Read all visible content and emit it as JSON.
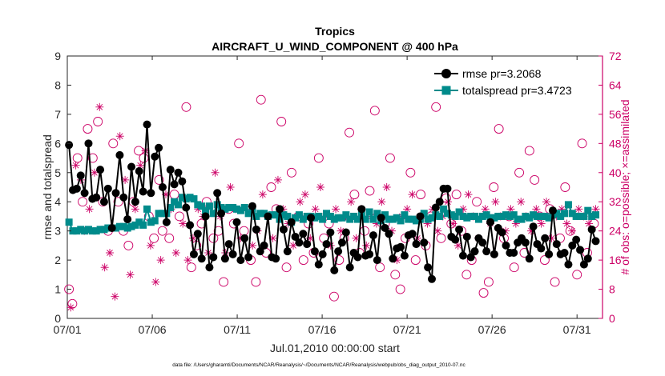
{
  "chart_data": {
    "type": "line",
    "title": "Tropics",
    "subtitle": "AIRCRAFT_U_WIND_COMPONENT @ 400 hPa",
    "xlabel": "Jul.01,2010 00:00:00 start",
    "ylabel_left": "rmse and totalspread",
    "ylabel_right": "# of obs: o=possible; ×=assimilated",
    "footer": "data file: /Users/gharamti/Documents/NCAR/Reanalysis/~/Documents/NCAR/Reanalysis/webpub/obs_diag_output_2010-07.nc",
    "xlim": [
      0,
      31.5
    ],
    "ylim_left": [
      0,
      9
    ],
    "ylim_right": [
      0,
      72
    ],
    "x_ticks": [
      0,
      5,
      10,
      15,
      20,
      25,
      30
    ],
    "x_tick_labels": [
      "07/01",
      "07/06",
      "07/11",
      "07/16",
      "07/21",
      "07/26",
      "07/31"
    ],
    "y_left_ticks": [
      "0",
      "1",
      "2",
      "3",
      "4",
      "5",
      "6",
      "7",
      "8",
      "9"
    ],
    "y_right_ticks": [
      "0",
      "8",
      "16",
      "24",
      "32",
      "40",
      "48",
      "56",
      "64",
      "72"
    ],
    "colors": {
      "rmse": "#000000",
      "totalspread": "#008b8b",
      "obs": "#cc0066",
      "axis": "#262626"
    },
    "series": [
      {
        "name": "rmse",
        "legend": "rmse pr=3.2068",
        "values": [
          5.95,
          4.4,
          4.45,
          4.9,
          4.3,
          6,
          4.1,
          4.15,
          5.1,
          4.0,
          4.45,
          3.1,
          4.3,
          5.6,
          4.15,
          3.4,
          5.2,
          4.0,
          5.05,
          4.35,
          6.65,
          4.3,
          5.55,
          5.85,
          4.5,
          3.3,
          5.1,
          4.6,
          5.0,
          4.7,
          3.8,
          3.2,
          2.2,
          2.9,
          2.05,
          3.5,
          1.75,
          2.1,
          4.3,
          3.6,
          2.05,
          2.55,
          2.2,
          3.3,
          2.0,
          2.75,
          2.1,
          3.85,
          3.05,
          2.3,
          2.5,
          3.5,
          2.1,
          2.05,
          3.75,
          3.05,
          2.3,
          3.3,
          2.8,
          2.6,
          2.9,
          2.55,
          3.45,
          2.3,
          1.85,
          2.2,
          2.55,
          2.95,
          1.65,
          2.3,
          2.6,
          2.95,
          1.75,
          2.25,
          2.1,
          3.75,
          2.15,
          2.2,
          2.85,
          2.0,
          3.45,
          3.1,
          2.9,
          2.05,
          2.4,
          2.45,
          2.15,
          2.85,
          2.9,
          2.55,
          3.5,
          2.6,
          1.75,
          1.35,
          3.8,
          4.0,
          4.45,
          4.45,
          2.8,
          2.7,
          3.05,
          2.15,
          2.8,
          2.1,
          2.3,
          2.75,
          2.6,
          2.3,
          3.3,
          2.2,
          3.1,
          2.95,
          2.5,
          2.25,
          2.25,
          2.6,
          2.75,
          2.6,
          2.05,
          3.15,
          2.55,
          2.4,
          2.75,
          2.2,
          3.7,
          2.55,
          2.2,
          2.25,
          1.85,
          2.5,
          2.7,
          2.35,
          1.85,
          2.05,
          3.05,
          2.65
        ]
      },
      {
        "name": "totalspread",
        "legend": "totalspread pr=3.4723",
        "values": [
          3.3,
          3.0,
          3.0,
          3.05,
          3.0,
          3.05,
          3.0,
          3.0,
          3.05,
          3.05,
          3.1,
          3.1,
          3.1,
          3.15,
          3.15,
          3.1,
          3.15,
          3.2,
          3.3,
          3.2,
          3.75,
          3.3,
          3.35,
          3.6,
          3.6,
          3.6,
          3.8,
          4.0,
          3.9,
          4.15,
          4.1,
          4.15,
          4.1,
          3.9,
          3.85,
          3.7,
          3.85,
          3.6,
          3.9,
          3.8,
          3.75,
          3.8,
          3.8,
          3.75,
          3.7,
          3.8,
          3.6,
          3.75,
          3.5,
          3.6,
          3.6,
          3.5,
          3.55,
          3.55,
          3.4,
          3.55,
          3.5,
          3.3,
          3.45,
          3.55,
          3.4,
          3.5,
          3.5,
          3.45,
          3.5,
          3.4,
          3.6,
          3.5,
          3.4,
          3.45,
          3.45,
          3.55,
          3.4,
          3.5,
          3.4,
          3.55,
          3.4,
          3.65,
          3.4,
          3.6,
          3.35,
          3.55,
          3.4,
          3.4,
          3.45,
          3.35,
          3.55,
          3.4,
          3.4,
          3.35,
          3.4,
          3.6,
          3.4,
          3.45,
          3.55,
          3.5,
          3.75,
          3.6,
          3.55,
          3.5,
          3.65,
          3.5,
          3.45,
          3.5,
          3.5,
          3.4,
          3.5,
          3.55,
          3.45,
          3.45,
          3.5,
          3.5,
          3.55,
          3.5,
          3.55,
          3.4,
          3.4,
          3.5,
          3.45,
          3.55,
          3.5,
          3.5,
          3.5,
          3.45,
          3.55,
          3.6,
          3.5,
          3.6,
          3.9,
          3.6,
          3.5,
          3.5,
          3.5,
          3.7,
          3.5,
          3.55
        ]
      }
    ],
    "obs_possible": [
      [
        0.1,
        8
      ],
      [
        0.3,
        4
      ],
      [
        0.6,
        44
      ],
      [
        0.9,
        32
      ],
      [
        1.2,
        52
      ],
      [
        1.5,
        44
      ],
      [
        1.8,
        54
      ],
      [
        2.1,
        32
      ],
      [
        2.4,
        24
      ],
      [
        2.7,
        48
      ],
      [
        3.0,
        32
      ],
      [
        3.3,
        24
      ],
      [
        3.6,
        20
      ],
      [
        3.9,
        32
      ],
      [
        4.2,
        46
      ],
      [
        4.5,
        44
      ],
      [
        4.8,
        28
      ],
      [
        5.1,
        22
      ],
      [
        5.4,
        38
      ],
      [
        5.6,
        24
      ],
      [
        6.0,
        22
      ],
      [
        6.3,
        34
      ],
      [
        6.6,
        28
      ],
      [
        7.0,
        58
      ],
      [
        7.3,
        14
      ],
      [
        7.6,
        20
      ],
      [
        7.9,
        26
      ],
      [
        8.2,
        32
      ],
      [
        8.6,
        22
      ],
      [
        8.9,
        24
      ],
      [
        9.2,
        10
      ],
      [
        9.5,
        30
      ],
      [
        9.8,
        26
      ],
      [
        10.1,
        48
      ],
      [
        10.4,
        24
      ],
      [
        10.8,
        16
      ],
      [
        11.1,
        10
      ],
      [
        11.4,
        60
      ],
      [
        11.7,
        18
      ],
      [
        12.0,
        36
      ],
      [
        12.3,
        30
      ],
      [
        12.6,
        54
      ],
      [
        12.9,
        14
      ],
      [
        13.2,
        40
      ],
      [
        13.6,
        28
      ],
      [
        13.9,
        16
      ],
      [
        14.2,
        26
      ],
      [
        14.5,
        18
      ],
      [
        14.8,
        44
      ],
      [
        15.1,
        22
      ],
      [
        15.4,
        26
      ],
      [
        15.7,
        6
      ],
      [
        16.0,
        16
      ],
      [
        16.3,
        22
      ],
      [
        16.6,
        51
      ],
      [
        16.9,
        34
      ],
      [
        17.2,
        18
      ],
      [
        17.5,
        24
      ],
      [
        17.8,
        35
      ],
      [
        18.1,
        57
      ],
      [
        18.4,
        14
      ],
      [
        18.7,
        26
      ],
      [
        19.0,
        44
      ],
      [
        19.3,
        12
      ],
      [
        19.6,
        8
      ],
      [
        19.9,
        22
      ],
      [
        20.2,
        40
      ],
      [
        20.5,
        16
      ],
      [
        20.8,
        34
      ],
      [
        21.1,
        20
      ],
      [
        21.4,
        28
      ],
      [
        21.7,
        58
      ],
      [
        22.0,
        22
      ],
      [
        22.3,
        33
      ],
      [
        22.6,
        26
      ],
      [
        22.9,
        34
      ],
      [
        23.2,
        24
      ],
      [
        23.5,
        12
      ],
      [
        23.8,
        16
      ],
      [
        24.1,
        32
      ],
      [
        24.5,
        7
      ],
      [
        24.8,
        10
      ],
      [
        25.1,
        36
      ],
      [
        25.4,
        52
      ],
      [
        25.7,
        22
      ],
      [
        26.0,
        28
      ],
      [
        26.3,
        14
      ],
      [
        26.6,
        40
      ],
      [
        26.9,
        18
      ],
      [
        27.2,
        46
      ],
      [
        27.5,
        38
      ],
      [
        27.8,
        28
      ],
      [
        28.1,
        16
      ],
      [
        28.4,
        30
      ],
      [
        28.7,
        10
      ],
      [
        29.0,
        22
      ],
      [
        29.3,
        36
      ],
      [
        29.6,
        24
      ],
      [
        30.0,
        12
      ],
      [
        30.3,
        48
      ],
      [
        30.6,
        18
      ],
      [
        31.0,
        26
      ]
    ],
    "obs_assimilated": [
      [
        0.2,
        3
      ],
      [
        0.5,
        42
      ],
      [
        0.8,
        38
      ],
      [
        1.0,
        24
      ],
      [
        1.3,
        30
      ],
      [
        1.6,
        40
      ],
      [
        1.9,
        58
      ],
      [
        2.2,
        14
      ],
      [
        2.5,
        18
      ],
      [
        2.8,
        6
      ],
      [
        3.1,
        50
      ],
      [
        3.4,
        38
      ],
      [
        3.7,
        12
      ],
      [
        4.0,
        30
      ],
      [
        4.3,
        42
      ],
      [
        4.6,
        46
      ],
      [
        4.9,
        20
      ],
      [
        5.2,
        10
      ],
      [
        5.5,
        16
      ],
      [
        5.8,
        34
      ],
      [
        6.1,
        30
      ],
      [
        6.4,
        18
      ],
      [
        6.8,
        26
      ],
      [
        7.1,
        16
      ],
      [
        7.4,
        22
      ],
      [
        7.7,
        30
      ],
      [
        8.0,
        28
      ],
      [
        8.3,
        18
      ],
      [
        8.7,
        40
      ],
      [
        9.0,
        28
      ],
      [
        9.3,
        18
      ],
      [
        9.6,
        36
      ],
      [
        9.9,
        30
      ],
      [
        10.2,
        22
      ],
      [
        10.5,
        30
      ],
      [
        10.9,
        20
      ],
      [
        11.2,
        24
      ],
      [
        11.5,
        34
      ],
      [
        11.8,
        28
      ],
      [
        12.1,
        22
      ],
      [
        12.4,
        38
      ],
      [
        12.7,
        30
      ],
      [
        13.0,
        26
      ],
      [
        13.3,
        20
      ],
      [
        13.7,
        32
      ],
      [
        14.0,
        34
      ],
      [
        14.3,
        22
      ],
      [
        14.6,
        30
      ],
      [
        14.9,
        36
      ],
      [
        15.2,
        28
      ],
      [
        15.5,
        20
      ],
      [
        15.8,
        30
      ],
      [
        16.1,
        24
      ],
      [
        16.4,
        28
      ],
      [
        16.7,
        32
      ],
      [
        17.0,
        22
      ],
      [
        17.3,
        30
      ],
      [
        17.6,
        20
      ],
      [
        17.9,
        28
      ],
      [
        18.2,
        26
      ],
      [
        18.5,
        32
      ],
      [
        18.8,
        36
      ],
      [
        19.1,
        24
      ],
      [
        19.4,
        16
      ],
      [
        19.7,
        28
      ],
      [
        20.0,
        30
      ],
      [
        20.3,
        34
      ],
      [
        20.6,
        22
      ],
      [
        20.9,
        28
      ],
      [
        21.2,
        26
      ],
      [
        21.5,
        30
      ],
      [
        21.8,
        24
      ],
      [
        22.1,
        28
      ],
      [
        22.4,
        32
      ],
      [
        22.7,
        26
      ],
      [
        23.0,
        20
      ],
      [
        23.3,
        30
      ],
      [
        23.6,
        34
      ],
      [
        23.9,
        28
      ],
      [
        24.2,
        22
      ],
      [
        24.6,
        30
      ],
      [
        24.9,
        26
      ],
      [
        25.2,
        32
      ],
      [
        25.5,
        28
      ],
      [
        25.8,
        24
      ],
      [
        26.1,
        30
      ],
      [
        26.4,
        26
      ],
      [
        26.7,
        32
      ],
      [
        27.0,
        28
      ],
      [
        27.3,
        24
      ],
      [
        27.6,
        30
      ],
      [
        27.9,
        26
      ],
      [
        28.2,
        32
      ],
      [
        28.5,
        22
      ],
      [
        28.8,
        28
      ],
      [
        29.1,
        30
      ],
      [
        29.4,
        26
      ],
      [
        29.7,
        24
      ],
      [
        30.1,
        30
      ],
      [
        30.4,
        28
      ],
      [
        30.7,
        26
      ],
      [
        31.1,
        30
      ]
    ]
  }
}
